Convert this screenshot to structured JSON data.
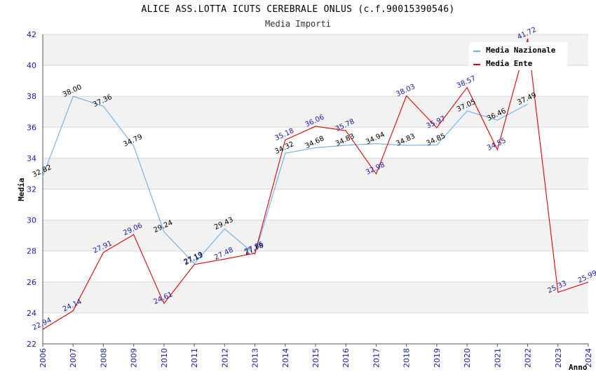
{
  "title": "ALICE ASS.LOTTA ICUTS CEREBRALE ONLUS (c.f.90015390546)",
  "subtitle": "Media Importi",
  "chart_data": {
    "type": "line",
    "title": "Media Importi",
    "xlabel": "Anno",
    "ylabel": "Media",
    "ylim": [
      22,
      42
    ],
    "yticks": [
      "22",
      "24",
      "26",
      "28",
      "30",
      "32",
      "34",
      "36",
      "38",
      "40",
      "42"
    ],
    "x": [
      "2006",
      "2007",
      "2008",
      "2009",
      "2010",
      "2011",
      "2012",
      "2013",
      "2014",
      "2015",
      "2016",
      "2017",
      "2018",
      "2019",
      "2020",
      "2021",
      "2022",
      "2023",
      "2024"
    ],
    "legend_position": "top-right",
    "series": [
      {
        "name": "Media Nazionale",
        "color": "#6aaee8",
        "values": [
          32.82,
          38.0,
          37.36,
          34.79,
          29.24,
          27.19,
          29.43,
          27.78,
          34.32,
          34.68,
          34.83,
          34.94,
          34.83,
          34.85,
          37.05,
          36.46,
          37.49,
          null,
          null
        ],
        "labels": [
          "32.82",
          "38.00",
          "37.36",
          "34.79",
          "29.24",
          "27.19",
          "29.43",
          "27.78",
          "34.32",
          "34.68",
          "34.83",
          "34.94",
          "34.83",
          "34.85",
          "37.05",
          "36.46",
          "37.49",
          null,
          null
        ]
      },
      {
        "name": "Media Ente",
        "color": "#dd0000",
        "values": [
          22.94,
          24.14,
          27.91,
          29.06,
          24.61,
          27.13,
          27.48,
          27.86,
          35.18,
          36.06,
          35.78,
          32.98,
          38.03,
          35.97,
          38.57,
          34.55,
          41.72,
          25.33,
          25.99
        ],
        "labels": [
          "22.94",
          "24.14",
          "27.91",
          "29.06",
          "24.61",
          "27.13",
          "27.48",
          "27.86",
          "35.18",
          "36.06",
          "35.78",
          "32.98",
          "38.03",
          "35.97",
          "38.57",
          "34.55",
          "41.72",
          "25.33",
          "25.99"
        ]
      }
    ]
  }
}
